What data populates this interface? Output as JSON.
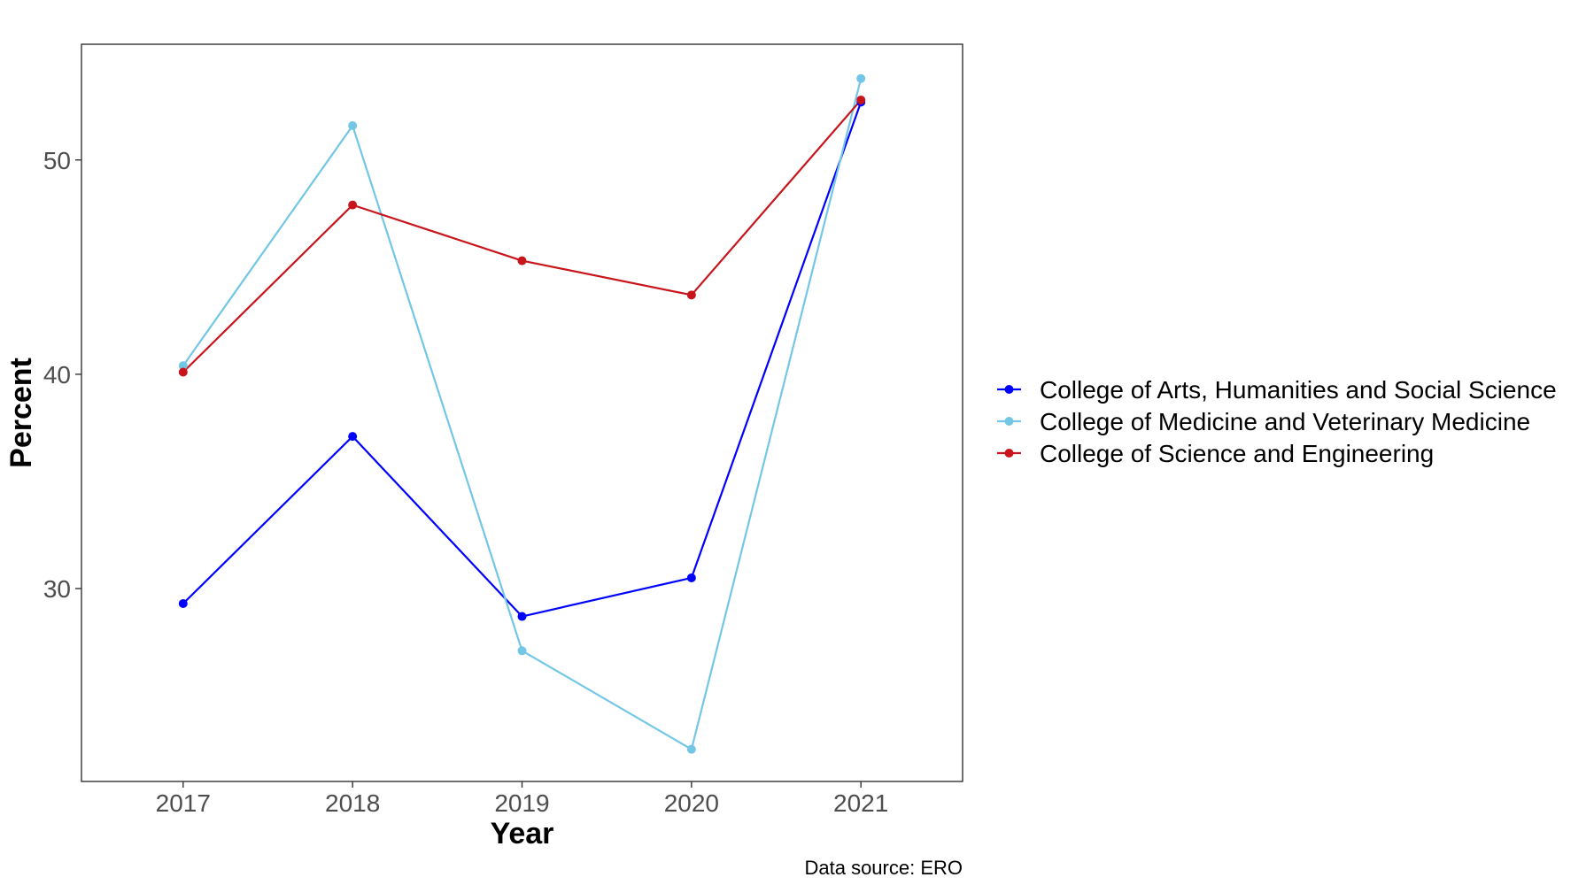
{
  "chart_data": {
    "type": "line",
    "title": "",
    "xlabel": "Year",
    "ylabel": "Percent",
    "caption": "Data source: ERO",
    "categories": [
      "2017",
      "2018",
      "2019",
      "2020",
      "2021"
    ],
    "xlim": [
      2016.4,
      2021.6
    ],
    "ylim": [
      21.0,
      55.4
    ],
    "yticks": [
      30,
      40,
      50
    ],
    "grid": false,
    "legend_position": "right",
    "series": [
      {
        "name": "College of Arts, Humanities and Social Science",
        "color": "#0000ff",
        "values": [
          29.3,
          37.1,
          28.7,
          30.5,
          52.7
        ]
      },
      {
        "name": "College of Medicine and Veterinary Medicine",
        "color": "#73c6e6",
        "values": [
          40.4,
          51.6,
          27.1,
          22.5,
          53.8
        ]
      },
      {
        "name": "College of Science and Engineering",
        "color": "#c8151c",
        "values": [
          40.1,
          47.9,
          45.3,
          43.7,
          52.8
        ]
      }
    ]
  }
}
